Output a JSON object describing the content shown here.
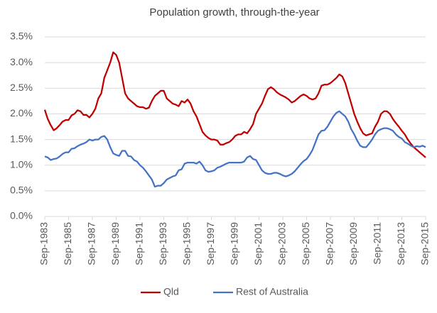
{
  "chart_data": {
    "type": "line",
    "title": "Population growth, through-the-year",
    "categories": [
      "Sep-1983",
      null,
      null,
      null,
      null,
      null,
      null,
      null,
      "Sep-1985",
      null,
      null,
      null,
      null,
      null,
      null,
      null,
      "Sep-1987",
      null,
      null,
      null,
      null,
      null,
      null,
      null,
      "Sep-1989",
      null,
      null,
      null,
      null,
      null,
      null,
      null,
      "Sep-1991",
      null,
      null,
      null,
      null,
      null,
      null,
      null,
      "Sep-1993",
      null,
      null,
      null,
      null,
      null,
      null,
      null,
      "Sep-1995",
      null,
      null,
      null,
      null,
      null,
      null,
      null,
      "Sep-1997",
      null,
      null,
      null,
      null,
      null,
      null,
      null,
      "Sep-1999",
      null,
      null,
      null,
      null,
      null,
      null,
      null,
      "Sep-2001",
      null,
      null,
      null,
      null,
      null,
      null,
      null,
      "Sep-2003",
      null,
      null,
      null,
      null,
      null,
      null,
      null,
      "Sep-2005",
      null,
      null,
      null,
      null,
      null,
      null,
      null,
      "Sep-2007",
      null,
      null,
      null,
      null,
      null,
      null,
      null,
      "Sep-2009",
      null,
      null,
      null,
      null,
      null,
      null,
      null,
      "Sep-2011",
      null,
      null,
      null,
      null,
      null,
      null,
      null,
      "Sep-2013",
      null,
      null,
      null,
      null,
      null,
      null,
      null,
      "Sep-2015"
    ],
    "series": [
      {
        "name": "Qld",
        "color": "#c00000",
        "values": [
          2.08,
          1.9,
          1.78,
          1.68,
          1.72,
          1.78,
          1.85,
          1.88,
          1.88,
          1.97,
          2.0,
          2.07,
          2.05,
          1.98,
          1.98,
          1.93,
          2.0,
          2.1,
          2.3,
          2.4,
          2.7,
          2.85,
          3.0,
          3.2,
          3.15,
          3.0,
          2.7,
          2.4,
          2.3,
          2.25,
          2.2,
          2.15,
          2.13,
          2.13,
          2.1,
          2.12,
          2.25,
          2.35,
          2.4,
          2.45,
          2.45,
          2.3,
          2.25,
          2.2,
          2.18,
          2.15,
          2.25,
          2.22,
          2.28,
          2.2,
          2.05,
          1.95,
          1.8,
          1.65,
          1.58,
          1.53,
          1.5,
          1.5,
          1.48,
          1.4,
          1.4,
          1.43,
          1.45,
          1.5,
          1.57,
          1.6,
          1.6,
          1.65,
          1.62,
          1.7,
          1.8,
          2.0,
          2.1,
          2.2,
          2.35,
          2.48,
          2.52,
          2.48,
          2.42,
          2.38,
          2.35,
          2.32,
          2.28,
          2.22,
          2.25,
          2.3,
          2.35,
          2.38,
          2.35,
          2.3,
          2.28,
          2.3,
          2.4,
          2.55,
          2.57,
          2.57,
          2.6,
          2.65,
          2.7,
          2.77,
          2.73,
          2.6,
          2.4,
          2.2,
          2.0,
          1.85,
          1.72,
          1.62,
          1.58,
          1.6,
          1.62,
          1.75,
          1.85,
          2.0,
          2.05,
          2.05,
          2.0,
          1.9,
          1.82,
          1.75,
          1.67,
          1.6,
          1.5,
          1.42,
          1.35,
          1.3,
          1.25,
          1.2,
          1.15
        ]
      },
      {
        "name": "Rest of Australia",
        "color": "#4472c4",
        "values": [
          1.17,
          1.15,
          1.1,
          1.12,
          1.13,
          1.17,
          1.22,
          1.25,
          1.25,
          1.32,
          1.33,
          1.37,
          1.4,
          1.42,
          1.45,
          1.5,
          1.48,
          1.5,
          1.5,
          1.55,
          1.57,
          1.5,
          1.35,
          1.23,
          1.2,
          1.18,
          1.28,
          1.28,
          1.18,
          1.17,
          1.1,
          1.07,
          1.0,
          0.95,
          0.88,
          0.8,
          0.72,
          0.58,
          0.6,
          0.6,
          0.65,
          0.72,
          0.75,
          0.78,
          0.8,
          0.9,
          0.92,
          1.03,
          1.05,
          1.05,
          1.05,
          1.03,
          1.07,
          1.0,
          0.9,
          0.87,
          0.88,
          0.9,
          0.95,
          0.97,
          1.0,
          1.03,
          1.05,
          1.05,
          1.05,
          1.05,
          1.05,
          1.07,
          1.15,
          1.18,
          1.12,
          1.1,
          1.0,
          0.9,
          0.85,
          0.83,
          0.83,
          0.85,
          0.85,
          0.83,
          0.8,
          0.78,
          0.8,
          0.83,
          0.88,
          0.95,
          1.02,
          1.08,
          1.12,
          1.2,
          1.3,
          1.45,
          1.6,
          1.67,
          1.68,
          1.75,
          1.85,
          1.95,
          2.02,
          2.05,
          2.0,
          1.95,
          1.85,
          1.7,
          1.6,
          1.48,
          1.38,
          1.35,
          1.35,
          1.42,
          1.5,
          1.6,
          1.67,
          1.7,
          1.72,
          1.72,
          1.7,
          1.67,
          1.6,
          1.55,
          1.52,
          1.45,
          1.42,
          1.38,
          1.35,
          1.37,
          1.36,
          1.38,
          1.35
        ]
      }
    ],
    "ylim": [
      0,
      3.5
    ],
    "yticks": [
      {
        "value": 0,
        "label": "0.0%"
      },
      {
        "value": 0.5,
        "label": "0.5%"
      },
      {
        "value": 1,
        "label": "1.0%"
      },
      {
        "value": 1.5,
        "label": "1.5%"
      },
      {
        "value": 2,
        "label": "2.0%"
      },
      {
        "value": 2.5,
        "label": "2.5%"
      },
      {
        "value": 3,
        "label": "3.0%"
      },
      {
        "value": 3.5,
        "label": "3.5%"
      }
    ],
    "grid": true,
    "legend": "bottom"
  }
}
